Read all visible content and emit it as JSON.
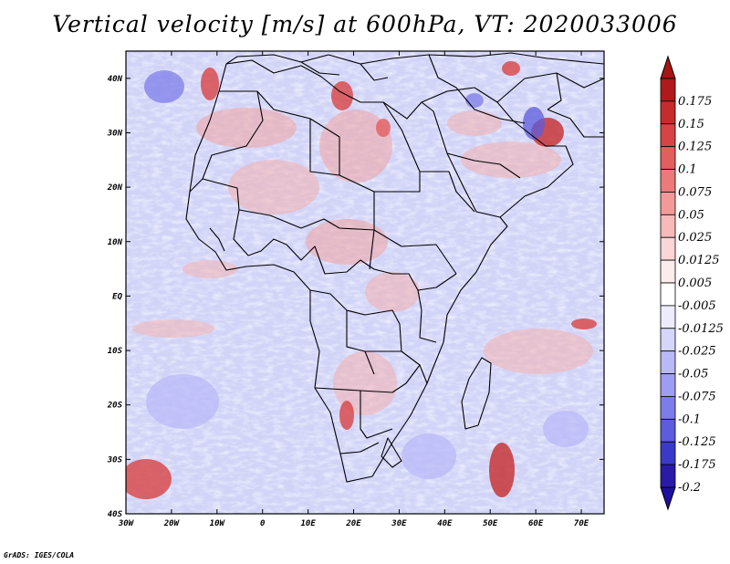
{
  "title": "Vertical velocity [m/s] at 600hPa, VT: 2020033006",
  "credit": "GrADS: IGES/COLA",
  "map": {
    "region": "Africa",
    "lon_range": [
      -30,
      75
    ],
    "lat_range": [
      -40,
      45
    ],
    "lon_ticks": [
      {
        "value": -30,
        "label": "30W"
      },
      {
        "value": -20,
        "label": "20W"
      },
      {
        "value": -10,
        "label": "10W"
      },
      {
        "value": 0,
        "label": "0"
      },
      {
        "value": 10,
        "label": "10E"
      },
      {
        "value": 20,
        "label": "20E"
      },
      {
        "value": 30,
        "label": "30E"
      },
      {
        "value": 40,
        "label": "40E"
      },
      {
        "value": 50,
        "label": "50E"
      },
      {
        "value": 60,
        "label": "60E"
      },
      {
        "value": 70,
        "label": "70E"
      }
    ],
    "lat_ticks": [
      {
        "value": 40,
        "label": "40N"
      },
      {
        "value": 30,
        "label": "30N"
      },
      {
        "value": 20,
        "label": "20N"
      },
      {
        "value": 10,
        "label": "10N"
      },
      {
        "value": 0,
        "label": "EQ"
      },
      {
        "value": -10,
        "label": "10S"
      },
      {
        "value": -20,
        "label": "20S"
      },
      {
        "value": -30,
        "label": "30S"
      },
      {
        "value": -40,
        "label": "40S"
      }
    ]
  },
  "colorbar": {
    "levels": [
      {
        "label": "0.175",
        "color": "#b01a1a"
      },
      {
        "label": "0.15",
        "color": "#c62c2c"
      },
      {
        "label": "0.125",
        "color": "#d84343"
      },
      {
        "label": "0.1",
        "color": "#e35e5e"
      },
      {
        "label": "0.075",
        "color": "#ec7a7a"
      },
      {
        "label": "0.05",
        "color": "#f39999"
      },
      {
        "label": "0.025",
        "color": "#f8b9b9"
      },
      {
        "label": "0.0125",
        "color": "#fcd6d6"
      },
      {
        "label": "0.005",
        "color": "#fdecec"
      },
      {
        "label": "-0.005",
        "color": "#ffffff"
      },
      {
        "label": "-0.0125",
        "color": "#ececfd"
      },
      {
        "label": "-0.025",
        "color": "#d6d6fc"
      },
      {
        "label": "-0.05",
        "color": "#b9b9f8"
      },
      {
        "label": "-0.075",
        "color": "#9d9df3"
      },
      {
        "label": "-0.1",
        "color": "#7d7dea"
      },
      {
        "label": "-0.125",
        "color": "#5c5cdc"
      },
      {
        "label": "-0.175",
        "color": "#3a3ac8"
      },
      {
        "label": "-0.2",
        "color": "#2a1aa8"
      }
    ],
    "top_cap_color": "#a81414",
    "bottom_cap_color": "#2010a0"
  }
}
